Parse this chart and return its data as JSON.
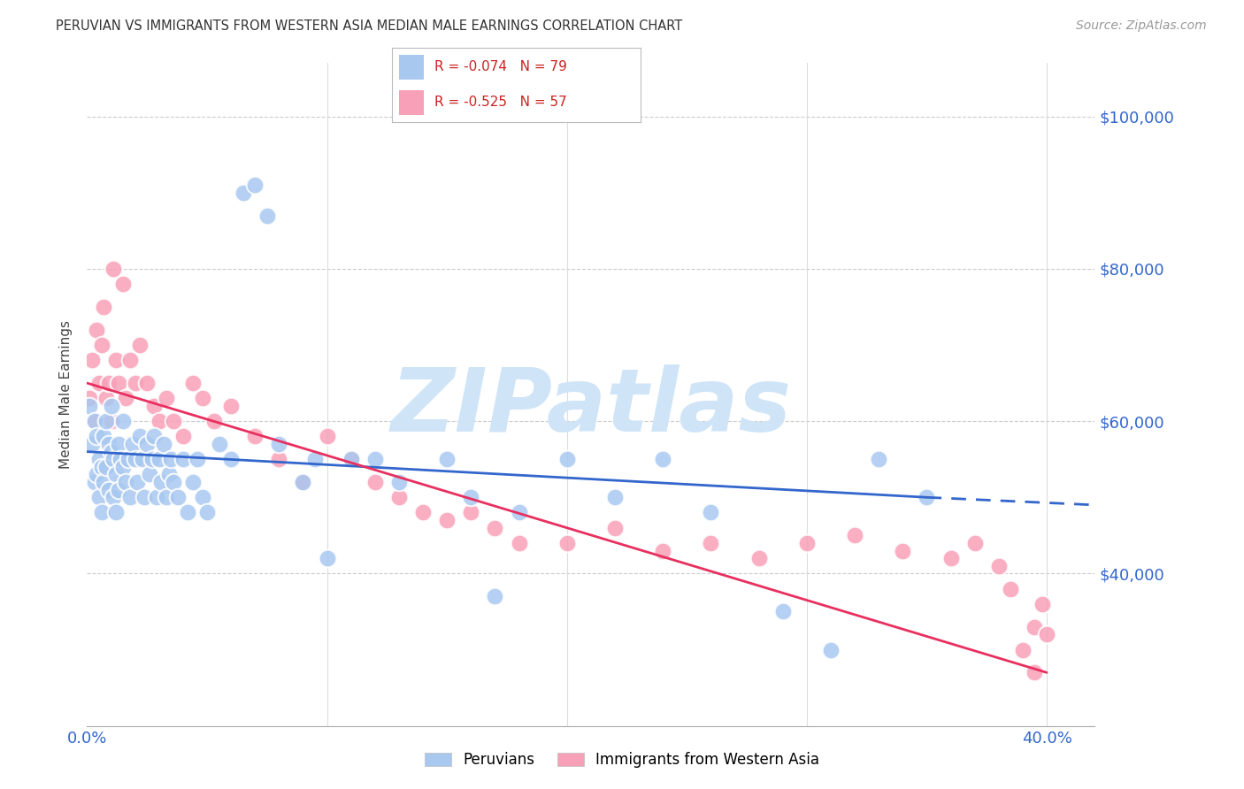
{
  "title": "PERUVIAN VS IMMIGRANTS FROM WESTERN ASIA MEDIAN MALE EARNINGS CORRELATION CHART",
  "source": "Source: ZipAtlas.com",
  "ylabel": "Median Male Earnings",
  "xlim": [
    0.0,
    0.42
  ],
  "ylim": [
    20000,
    107000
  ],
  "blue_R": -0.074,
  "blue_N": 79,
  "pink_R": -0.525,
  "pink_N": 57,
  "blue_color": "#a8c8f0",
  "pink_color": "#f8a0b8",
  "blue_line_color": "#3366cc",
  "pink_line_color": "#e83060",
  "watermark": "ZIPatlas",
  "watermark_color": "#d0e4f8",
  "legend_label_blue_name": "Peruvians",
  "legend_label_pink_name": "Immigrants from Western Asia",
  "blue_line_x0": 0.0,
  "blue_line_y0": 56000,
  "blue_line_x1": 0.35,
  "blue_line_y1": 50000,
  "blue_line_dash_x0": 0.35,
  "blue_line_dash_y0": 50000,
  "blue_line_dash_x1": 0.42,
  "blue_line_dash_y1": 49000,
  "pink_line_x0": 0.0,
  "pink_line_y0": 65000,
  "pink_line_x1": 0.4,
  "pink_line_y1": 27000,
  "blue_dots_x": [
    0.001,
    0.002,
    0.003,
    0.003,
    0.004,
    0.004,
    0.005,
    0.005,
    0.006,
    0.006,
    0.007,
    0.007,
    0.008,
    0.008,
    0.009,
    0.009,
    0.01,
    0.01,
    0.011,
    0.011,
    0.012,
    0.012,
    0.013,
    0.013,
    0.014,
    0.015,
    0.015,
    0.016,
    0.017,
    0.018,
    0.019,
    0.02,
    0.021,
    0.022,
    0.023,
    0.024,
    0.025,
    0.026,
    0.027,
    0.028,
    0.029,
    0.03,
    0.031,
    0.032,
    0.033,
    0.034,
    0.035,
    0.036,
    0.038,
    0.04,
    0.042,
    0.044,
    0.046,
    0.048,
    0.05,
    0.055,
    0.06,
    0.065,
    0.07,
    0.075,
    0.08,
    0.09,
    0.095,
    0.1,
    0.11,
    0.12,
    0.13,
    0.15,
    0.16,
    0.17,
    0.18,
    0.2,
    0.22,
    0.24,
    0.26,
    0.29,
    0.31,
    0.33,
    0.35
  ],
  "blue_dots_y": [
    62000,
    57000,
    60000,
    52000,
    53000,
    58000,
    55000,
    50000,
    54000,
    48000,
    58000,
    52000,
    60000,
    54000,
    57000,
    51000,
    62000,
    56000,
    50000,
    55000,
    53000,
    48000,
    57000,
    51000,
    55000,
    60000,
    54000,
    52000,
    55000,
    50000,
    57000,
    55000,
    52000,
    58000,
    55000,
    50000,
    57000,
    53000,
    55000,
    58000,
    50000,
    55000,
    52000,
    57000,
    50000,
    53000,
    55000,
    52000,
    50000,
    55000,
    48000,
    52000,
    55000,
    50000,
    48000,
    57000,
    55000,
    90000,
    91000,
    87000,
    57000,
    52000,
    55000,
    42000,
    55000,
    55000,
    52000,
    55000,
    50000,
    37000,
    48000,
    55000,
    50000,
    55000,
    48000,
    35000,
    30000,
    55000,
    50000
  ],
  "pink_dots_x": [
    0.001,
    0.002,
    0.003,
    0.004,
    0.005,
    0.006,
    0.007,
    0.008,
    0.009,
    0.01,
    0.011,
    0.012,
    0.013,
    0.015,
    0.016,
    0.018,
    0.02,
    0.022,
    0.025,
    0.028,
    0.03,
    0.033,
    0.036,
    0.04,
    0.044,
    0.048,
    0.053,
    0.06,
    0.07,
    0.08,
    0.09,
    0.1,
    0.11,
    0.12,
    0.13,
    0.14,
    0.15,
    0.16,
    0.17,
    0.18,
    0.2,
    0.22,
    0.24,
    0.26,
    0.28,
    0.3,
    0.32,
    0.34,
    0.36,
    0.37,
    0.38,
    0.385,
    0.39,
    0.395,
    0.395,
    0.398,
    0.4
  ],
  "pink_dots_y": [
    63000,
    68000,
    60000,
    72000,
    65000,
    70000,
    75000,
    63000,
    65000,
    60000,
    80000,
    68000,
    65000,
    78000,
    63000,
    68000,
    65000,
    70000,
    65000,
    62000,
    60000,
    63000,
    60000,
    58000,
    65000,
    63000,
    60000,
    62000,
    58000,
    55000,
    52000,
    58000,
    55000,
    52000,
    50000,
    48000,
    47000,
    48000,
    46000,
    44000,
    44000,
    46000,
    43000,
    44000,
    42000,
    44000,
    45000,
    43000,
    42000,
    44000,
    41000,
    38000,
    30000,
    27000,
    33000,
    36000,
    32000
  ]
}
